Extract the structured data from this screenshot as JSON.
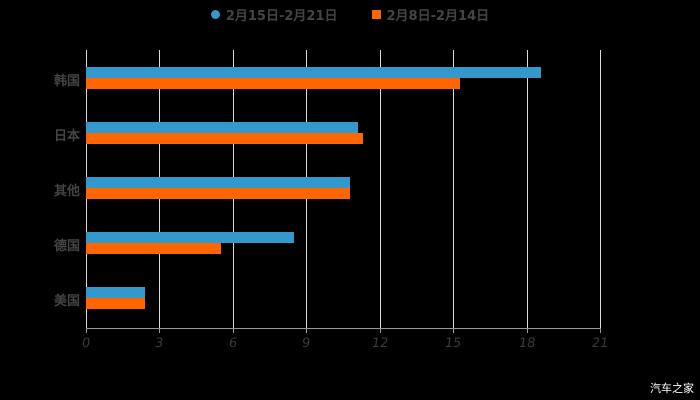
{
  "chart_data": {
    "type": "bar",
    "orientation": "horizontal",
    "title": "",
    "categories": [
      "韩国",
      "日本",
      "其他",
      "德国",
      "美国"
    ],
    "series": [
      {
        "name": "2月15日-2月21日",
        "color": "#3399cc",
        "values": [
          18.6,
          11.1,
          10.8,
          8.5,
          2.4
        ]
      },
      {
        "name": "2月8日-2月14日",
        "color": "#ff6600",
        "values": [
          15.3,
          11.3,
          10.8,
          5.5,
          2.4
        ]
      }
    ],
    "xlabel": "",
    "ylabel": "",
    "xlim": [
      0,
      21
    ],
    "xticks": [
      "0",
      "3",
      "6",
      "9",
      "12",
      "15",
      "18",
      "21"
    ],
    "grid": true,
    "legend_position": "top"
  },
  "legend": {
    "series1": "2月15日-2月21日",
    "series2": "2月8日-2月14日"
  },
  "watermark": "汽车之家"
}
